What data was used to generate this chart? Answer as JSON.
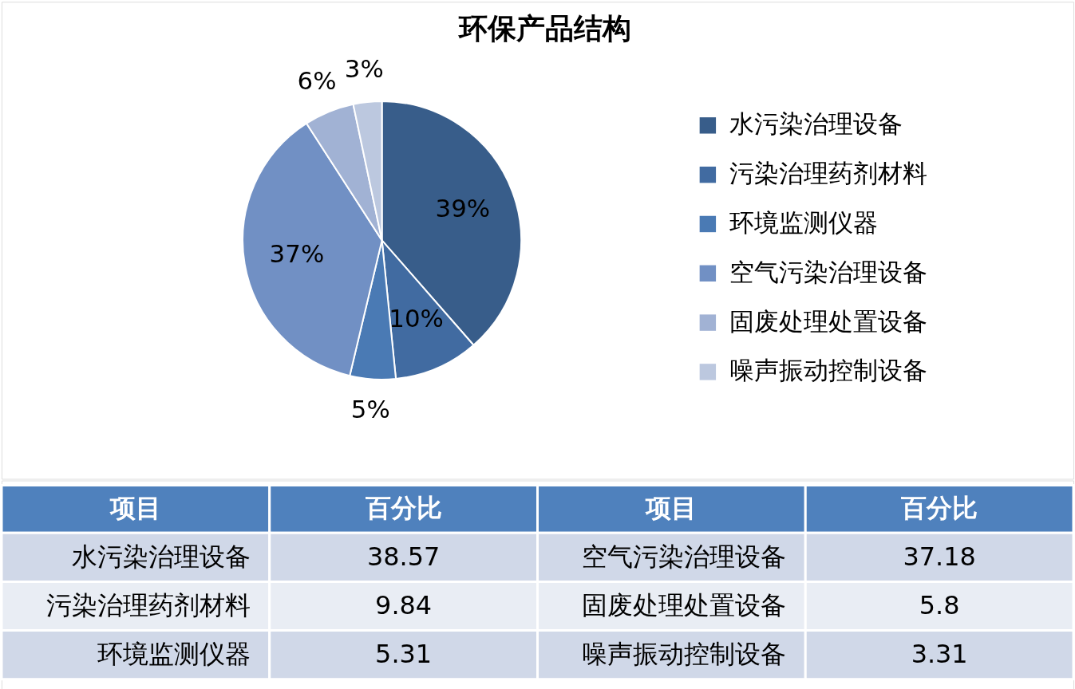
{
  "chart_data": [
    {
      "type": "pie",
      "title": "环保产品结构",
      "categories": [
        "水污染治理设备",
        "污染治理药剂材料",
        "环境监测仪器",
        "空气污染治理设备",
        "固废处理处置设备",
        "噪声振动控制设备"
      ],
      "values": [
        38.57,
        9.84,
        5.31,
        37.18,
        5.8,
        3.31
      ],
      "colors": [
        "#385d8a",
        "#416ba1",
        "#4a7ab4",
        "#7190c4",
        "#a1b2d4",
        "#bcc8df"
      ],
      "value_labels": [
        "39%",
        "10%",
        "5%",
        "37%",
        "6%",
        "3%"
      ],
      "legend": "right"
    },
    {
      "type": "other",
      "categories": [
        "水污染治理设备",
        "污染治理药剂材料",
        "环境监测仪器",
        "空气污染治理设备",
        "固废处理处置设备",
        "噪声振动控制设备"
      ],
      "values": [
        38.57,
        9.84,
        5.31,
        37.18,
        5.8,
        3.31
      ],
      "data_labels": true,
      "annotations": [
        "项目",
        "百分比",
        "项目",
        "百分比"
      ]
    }
  ]
}
